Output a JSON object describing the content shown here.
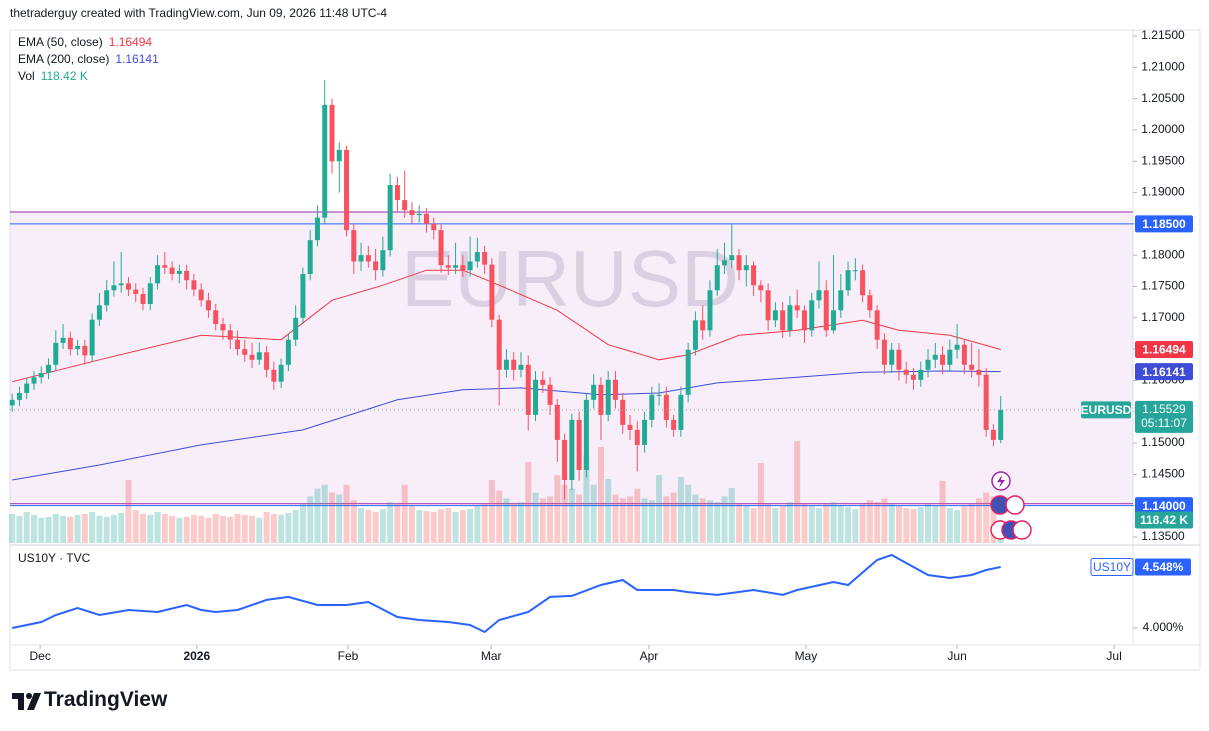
{
  "header": "thetraderguy created with TradingView.com, Jun 09, 2026 11:48 UTC-4",
  "branding": "TradingView",
  "chart_data": [
    {
      "type": "candlestick",
      "symbol": "EURUSD",
      "countdown": "05:11:07",
      "xlim": [
        -0.3,
        154.2
      ],
      "ylim": [
        1.13404,
        1.21596
      ],
      "xticks": [
        {
          "value": 3.85,
          "label": "Dec"
        },
        {
          "value": 25.4,
          "label": "2026"
        },
        {
          "value": 46.2,
          "label": "Feb"
        },
        {
          "value": 65.9,
          "label": "Mar"
        },
        {
          "value": 87.6,
          "label": "Apr"
        },
        {
          "value": 109.2,
          "label": "May"
        },
        {
          "value": 130,
          "label": "Jun"
        },
        {
          "value": 151.6,
          "label": "Jul"
        }
      ],
      "yticks": [
        {
          "value": 1.135,
          "label": "1.13500"
        },
        {
          "value": 1.14,
          "label": "1.14000"
        },
        {
          "value": 1.145,
          "label": "1.14500"
        },
        {
          "value": 1.15,
          "label": "1.15000"
        },
        {
          "value": 1.155,
          "label": "1.15500"
        },
        {
          "value": 1.16,
          "label": "1.16000"
        },
        {
          "value": 1.165,
          "label": "1.16500"
        },
        {
          "value": 1.17,
          "label": "1.17000"
        },
        {
          "value": 1.175,
          "label": "1.17500"
        },
        {
          "value": 1.18,
          "label": "1.18000"
        },
        {
          "value": 1.185,
          "label": "1.18500"
        },
        {
          "value": 1.19,
          "label": "1.19000"
        },
        {
          "value": 1.195,
          "label": "1.19500"
        },
        {
          "value": 1.2,
          "label": "1.20000"
        },
        {
          "value": 1.205,
          "label": "1.20500"
        },
        {
          "value": 1.21,
          "label": "1.21000"
        },
        {
          "value": 1.215,
          "label": "1.21500"
        }
      ],
      "zone": {
        "range": [
          1.1869,
          1.1403
        ],
        "color": "#9c27b0"
      },
      "levels": [
        {
          "value": 1.185,
          "label": "1.18500",
          "color": "#2962ff"
        },
        {
          "value": 1.14,
          "label": "1.14000",
          "color": "#2962ff"
        }
      ],
      "series": [
        {
          "name": "EURUSD",
          "up_color": "#22ab94",
          "down_color": "#f7525f",
          "price_color": "#26a69a",
          "open": [
            1.156,
            1.1569,
            1.158,
            1.1595,
            1.1605,
            1.1612,
            1.1625,
            1.166,
            1.1668,
            1.165,
            1.1655,
            1.164,
            1.1697,
            1.172,
            1.1744,
            1.1752,
            1.1755,
            1.1745,
            1.1738,
            1.1722,
            1.1755,
            1.1784,
            1.178,
            1.177,
            1.1775,
            1.176,
            1.1745,
            1.1728,
            1.1712,
            1.169,
            1.168,
            1.1665,
            1.165,
            1.1641,
            1.1633,
            1.1645,
            1.1617,
            1.1598,
            1.1625,
            1.1665,
            1.17,
            1.177,
            1.1824,
            1.186,
            1.204,
            1.195,
            1.1968,
            1.184,
            1.179,
            1.18,
            1.179,
            1.1776,
            1.1808,
            1.1912,
            1.1888,
            1.1872,
            1.1864,
            1.1866,
            1.185,
            1.184,
            1.1784,
            1.178,
            1.1784,
            1.1776,
            1.179,
            1.1805,
            1.1785,
            1.1697,
            1.1617,
            1.1633,
            1.1617,
            1.1625,
            1.1545,
            1.1601,
            1.1593,
            1.1561,
            1.1505,
            1.1441,
            1.1537,
            1.1457,
            1.1569,
            1.1593,
            1.1545,
            1.1601,
            1.1569,
            1.1529,
            1.1521,
            1.1497,
            1.1537,
            1.1577,
            1.1577,
            1.1537,
            1.1521,
            1.1577,
            1.1649,
            1.1696,
            1.168,
            1.1744,
            1.1784,
            1.1792,
            1.18,
            1.1776,
            1.1784,
            1.1752,
            1.1744,
            1.1696,
            1.1712,
            1.168,
            1.172,
            1.1712,
            1.168,
            1.1728,
            1.1744,
            1.168,
            1.1712,
            1.1744,
            1.1776,
            1.1776,
            1.1736,
            1.1712,
            1.1665,
            1.1625,
            1.1649,
            1.1617,
            1.1609,
            1.1601,
            1.1617,
            1.1633,
            1.1641,
            1.1625,
            1.1649,
            1.1657,
            1.1625,
            1.1617,
            1.1609,
            1.1521,
            1.1505
          ],
          "high": [
            1.1579,
            1.159,
            1.1605,
            1.1615,
            1.1622,
            1.1635,
            1.168,
            1.169,
            1.1678,
            1.1665,
            1.1665,
            1.1707,
            1.174,
            1.176,
            1.179,
            1.1805,
            1.1765,
            1.1755,
            1.1748,
            1.1765,
            1.18,
            1.1805,
            1.179,
            1.1785,
            1.1785,
            1.177,
            1.1755,
            1.174,
            1.1722,
            1.17,
            1.169,
            1.168,
            1.1665,
            1.166,
            1.166,
            1.1655,
            1.163,
            1.1635,
            1.1675,
            1.172,
            1.178,
            1.184,
            1.188,
            1.208,
            1.205,
            1.198,
            1.1975,
            1.185,
            1.182,
            1.1815,
            1.181,
            1.183,
            1.193,
            1.1925,
            1.1935,
            1.1885,
            1.188,
            1.1875,
            1.186,
            1.185,
            1.18,
            1.182,
            1.18,
            1.183,
            1.1828,
            1.1815,
            1.1795,
            1.1705,
            1.165,
            1.1645,
            1.1645,
            1.164,
            1.1615,
            1.1615,
            1.1605,
            1.157,
            1.1515,
            1.1547,
            1.155,
            1.1579,
            1.161,
            1.1605,
            1.1615,
            1.1615,
            1.158,
            1.1545,
            1.1535,
            1.155,
            1.159,
            1.1595,
            1.159,
            1.1545,
            1.159,
            1.166,
            1.171,
            1.172,
            1.176,
            1.181,
            1.182,
            1.185,
            1.181,
            1.18,
            1.179,
            1.176,
            1.1755,
            1.1725,
            1.1725,
            1.1735,
            1.1745,
            1.172,
            1.174,
            1.179,
            1.176,
            1.18,
            1.177,
            1.179,
            1.1795,
            1.1785,
            1.1745,
            1.172,
            1.1675,
            1.166,
            1.166,
            1.163,
            1.162,
            1.163,
            1.165,
            1.166,
            1.1655,
            1.1665,
            1.169,
            1.1665,
            1.166,
            1.165,
            1.162,
            1.153,
            1.1575
          ],
          "low": [
            1.155,
            1.1559,
            1.157,
            1.1585,
            1.1595,
            1.1602,
            1.1615,
            1.165,
            1.164,
            1.164,
            1.1625,
            1.163,
            1.1687,
            1.171,
            1.1734,
            1.174,
            1.1735,
            1.1725,
            1.1712,
            1.1712,
            1.1745,
            1.177,
            1.176,
            1.1755,
            1.1745,
            1.1735,
            1.1718,
            1.17,
            1.168,
            1.1665,
            1.165,
            1.164,
            1.163,
            1.162,
            1.1625,
            1.1605,
            1.1585,
            1.1588,
            1.1615,
            1.1655,
            1.169,
            1.176,
            1.1814,
            1.185,
            1.193,
            1.19,
            1.183,
            1.177,
            1.1775,
            1.178,
            1.176,
            1.1766,
            1.1798,
            1.187,
            1.186,
            1.185,
            1.1852,
            1.1836,
            1.1825,
            1.1772,
            1.1768,
            1.177,
            1.1765,
            1.1766,
            1.178,
            1.177,
            1.1685,
            1.156,
            1.1605,
            1.16,
            1.1605,
            1.152,
            1.1535,
            1.158,
            1.1545,
            1.147,
            1.141,
            1.1425,
            1.144,
            1.1445,
            1.1555,
            1.1505,
            1.1535,
            1.1555,
            1.1515,
            1.1505,
            1.1455,
            1.1485,
            1.1525,
            1.156,
            1.1525,
            1.151,
            1.151,
            1.1565,
            1.164,
            1.1665,
            1.167,
            1.1735,
            1.177,
            1.178,
            1.176,
            1.175,
            1.1735,
            1.1725,
            1.168,
            1.1685,
            1.1668,
            1.167,
            1.17,
            1.166,
            1.167,
            1.1715,
            1.167,
            1.1675,
            1.17,
            1.1735,
            1.176,
            1.1725,
            1.17,
            1.165,
            1.161,
            1.1612,
            1.16,
            1.1595,
            1.1585,
            1.159,
            1.1605,
            1.162,
            1.161,
            1.1615,
            1.1635,
            1.161,
            1.1605,
            1.159,
            1.151,
            1.1495,
            1.15
          ],
          "close": [
            1.1569,
            1.158,
            1.1595,
            1.1605,
            1.1612,
            1.1625,
            1.166,
            1.1668,
            1.165,
            1.1655,
            1.164,
            1.1697,
            1.172,
            1.1744,
            1.1752,
            1.1755,
            1.1745,
            1.1738,
            1.1722,
            1.1755,
            1.1784,
            1.178,
            1.177,
            1.1775,
            1.176,
            1.1745,
            1.1728,
            1.1712,
            1.169,
            1.168,
            1.1665,
            1.165,
            1.1641,
            1.1633,
            1.1645,
            1.1617,
            1.1598,
            1.1625,
            1.1665,
            1.17,
            1.177,
            1.1824,
            1.186,
            1.204,
            1.195,
            1.1968,
            1.184,
            1.179,
            1.18,
            1.179,
            1.1776,
            1.1808,
            1.1912,
            1.1888,
            1.1872,
            1.1864,
            1.1866,
            1.185,
            1.184,
            1.1784,
            1.178,
            1.1784,
            1.1776,
            1.179,
            1.1805,
            1.1785,
            1.1697,
            1.1617,
            1.1633,
            1.1617,
            1.1625,
            1.1545,
            1.1601,
            1.1593,
            1.1561,
            1.1505,
            1.1441,
            1.1537,
            1.1457,
            1.1569,
            1.1593,
            1.1545,
            1.1601,
            1.1569,
            1.1529,
            1.1521,
            1.1497,
            1.1537,
            1.1577,
            1.1577,
            1.1537,
            1.1521,
            1.1577,
            1.1649,
            1.1696,
            1.168,
            1.1744,
            1.1784,
            1.1792,
            1.18,
            1.1776,
            1.1784,
            1.1752,
            1.1744,
            1.1696,
            1.1712,
            1.168,
            1.172,
            1.1712,
            1.168,
            1.1728,
            1.1744,
            1.168,
            1.1712,
            1.1744,
            1.1776,
            1.1776,
            1.1736,
            1.1712,
            1.1665,
            1.1625,
            1.1649,
            1.1617,
            1.1609,
            1.1601,
            1.1617,
            1.1633,
            1.1641,
            1.1625,
            1.1649,
            1.1657,
            1.1625,
            1.1617,
            1.1609,
            1.1521,
            1.1505,
            1.15529
          ]
        }
      ],
      "indicators": [
        {
          "name": "EMA (50, close)",
          "color": "#f23645",
          "x": [
            0,
            12,
            26,
            37,
            44,
            51,
            57,
            62,
            67,
            75,
            82,
            89,
            93,
            100,
            108,
            117,
            122,
            129,
            136
          ],
          "values": [
            1.1598,
            1.1633,
            1.1672,
            1.1665,
            1.1728,
            1.1752,
            1.1776,
            1.1776,
            1.1752,
            1.1712,
            1.1657,
            1.1633,
            1.1641,
            1.1672,
            1.168,
            1.1696,
            1.168,
            1.1672,
            1.16494
          ]
        },
        {
          "name": "EMA (200, close)",
          "color": "#3f4cd6",
          "x": [
            0,
            12,
            26,
            40,
            53,
            62,
            70,
            81,
            89,
            97,
            108,
            117,
            128,
            136
          ],
          "values": [
            1.1441,
            1.1465,
            1.1497,
            1.1521,
            1.1569,
            1.1585,
            1.1588,
            1.1577,
            1.158,
            1.1596,
            1.1605,
            1.1613,
            1.1615,
            1.16141
          ]
        }
      ],
      "volume": {
        "name": "Vol",
        "up_color": "rgba(38,166,154,0.3)",
        "down_color": "rgba(239,83,80,0.3)",
        "ylim": [
          0,
          680
        ],
        "current": {
          "value": 118.42,
          "label": "118.42 K"
        },
        "values": [
          150,
          140,
          160,
          145,
          130,
          135,
          150,
          140,
          135,
          145,
          150,
          160,
          140,
          135,
          145,
          155,
          325,
          170,
          150,
          145,
          160,
          150,
          140,
          130,
          135,
          145,
          140,
          130,
          150,
          140,
          135,
          150,
          145,
          140,
          130,
          160,
          150,
          145,
          155,
          170,
          200,
          240,
          280,
          300,
          260,
          250,
          300,
          220,
          180,
          170,
          160,
          175,
          210,
          200,
          300,
          190,
          170,
          165,
          160,
          175,
          180,
          160,
          170,
          175,
          190,
          200,
          325,
          270,
          230,
          200,
          210,
          417,
          260,
          230,
          240,
          350,
          300,
          280,
          250,
          453,
          300,
          495,
          330,
          250,
          230,
          240,
          280,
          230,
          220,
          350,
          240,
          260,
          340,
          300,
          250,
          230,
          220,
          210,
          240,
          283,
          200,
          190,
          180,
          412,
          200,
          180,
          190,
          210,
          525,
          200,
          190,
          180,
          200,
          210,
          190,
          185,
          175,
          200,
          220,
          210,
          230,
          200,
          190,
          180,
          175,
          185,
          200,
          190,
          320,
          180,
          170,
          190,
          200,
          230,
          260,
          240,
          118.42
        ]
      }
    },
    {
      "type": "line",
      "title": "US10Y · TVC",
      "xlim": [
        -0.3,
        154.2
      ],
      "ylim": [
        3.847,
        4.719
      ],
      "yticks": [
        {
          "value": 4,
          "label": "4.000%"
        }
      ],
      "current": {
        "value": 4.548,
        "label": "4.548%"
      },
      "series": [
        {
          "name": "US10Y",
          "color": "#2962ff",
          "x": [
            0,
            4,
            6,
            9,
            12,
            16,
            20,
            24,
            26,
            28,
            31,
            35,
            38,
            42,
            46,
            49,
            53,
            56,
            60,
            63,
            65,
            67,
            71,
            74,
            77,
            81,
            84,
            86,
            91,
            93,
            97,
            102,
            106,
            108,
            113,
            115,
            119,
            121,
            123,
            126,
            129,
            132,
            134,
            136
          ],
          "values": [
            4.0,
            4.054,
            4.117,
            4.18,
            4.117,
            4.162,
            4.144,
            4.207,
            4.162,
            4.144,
            4.162,
            4.252,
            4.279,
            4.207,
            4.207,
            4.234,
            4.099,
            4.072,
            4.054,
            4.027,
            3.964,
            4.072,
            4.144,
            4.279,
            4.288,
            4.386,
            4.431,
            4.341,
            4.341,
            4.323,
            4.297,
            4.341,
            4.297,
            4.341,
            4.413,
            4.386,
            4.611,
            4.656,
            4.584,
            4.476,
            4.449,
            4.476,
            4.521,
            4.548
          ]
        }
      ]
    }
  ]
}
